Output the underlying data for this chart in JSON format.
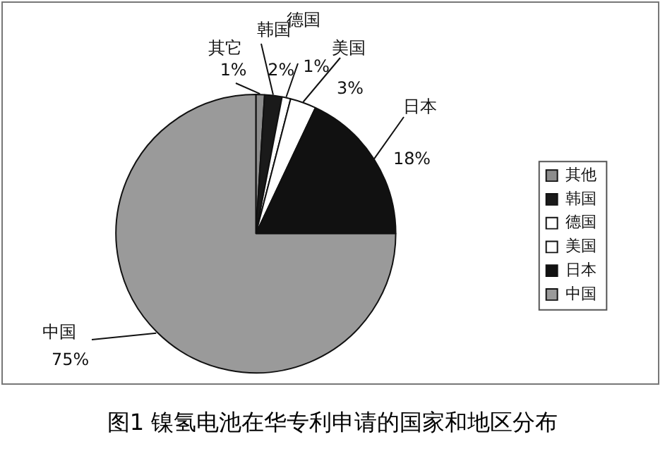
{
  "chart_data": {
    "type": "pie",
    "title": "图1  镍氢电池在华专利申请的国家和地区分布",
    "categories": [
      "其他",
      "韩国",
      "德国",
      "美国",
      "日本",
      "中国"
    ],
    "values": [
      1,
      2,
      1,
      3,
      18,
      75
    ],
    "colors": [
      "#8c8c8c",
      "#1a1a1a",
      "#ffffff",
      "#ffffff",
      "#111111",
      "#9a9a9a"
    ],
    "value_labels": [
      "1%",
      "2%",
      "1%",
      "3%",
      "18%",
      "75%"
    ],
    "annotations": [
      "其它",
      "韩国",
      "德国",
      "美国",
      "日本",
      "中国"
    ],
    "legend": "right"
  }
}
